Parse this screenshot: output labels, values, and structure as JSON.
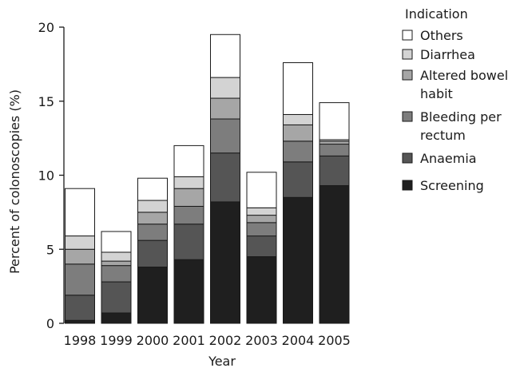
{
  "chart_data": {
    "type": "bar",
    "stacked": true,
    "title": "",
    "xlabel": "Year",
    "ylabel": "Percent of colonoscopies (%)",
    "ylim": [
      0,
      20
    ],
    "yticks": [
      0,
      5,
      10,
      15,
      20
    ],
    "grid": false,
    "legend_position": "right",
    "legend_title": "Indication",
    "categories": [
      "1998",
      "1999",
      "2000",
      "2001",
      "2002",
      "2003",
      "2004",
      "2005"
    ],
    "series": [
      {
        "name": "Screening",
        "legend_label": "Screening",
        "color": "#1f1f1f",
        "values": [
          0.2,
          0.7,
          3.8,
          4.3,
          8.2,
          4.5,
          8.5,
          9.3
        ]
      },
      {
        "name": "Anaemia",
        "legend_label": "Anaemia",
        "color": "#555555",
        "values": [
          1.7,
          2.1,
          1.8,
          2.4,
          3.3,
          1.4,
          2.4,
          2.0
        ]
      },
      {
        "name": "Bleeding per rectum",
        "legend_label": "Bleeding per\nrectum",
        "color": "#7d7d7d",
        "values": [
          2.1,
          1.1,
          1.1,
          1.2,
          2.3,
          0.9,
          1.4,
          0.8
        ]
      },
      {
        "name": "Altered bowel habit",
        "legend_label": "Altered bowel\nhabit",
        "color": "#a6a6a6",
        "values": [
          1.0,
          0.3,
          0.8,
          1.2,
          1.4,
          0.5,
          1.1,
          0.2
        ]
      },
      {
        "name": "Diarrhea",
        "legend_label": "Diarrhea",
        "color": "#d3d3d3",
        "values": [
          0.9,
          0.6,
          0.8,
          0.8,
          1.4,
          0.5,
          0.7,
          0.1
        ]
      },
      {
        "name": "Others",
        "legend_label": "Others",
        "color": "#ffffff",
        "values": [
          3.2,
          1.4,
          1.5,
          2.1,
          2.9,
          2.4,
          3.5,
          2.5
        ]
      }
    ]
  }
}
